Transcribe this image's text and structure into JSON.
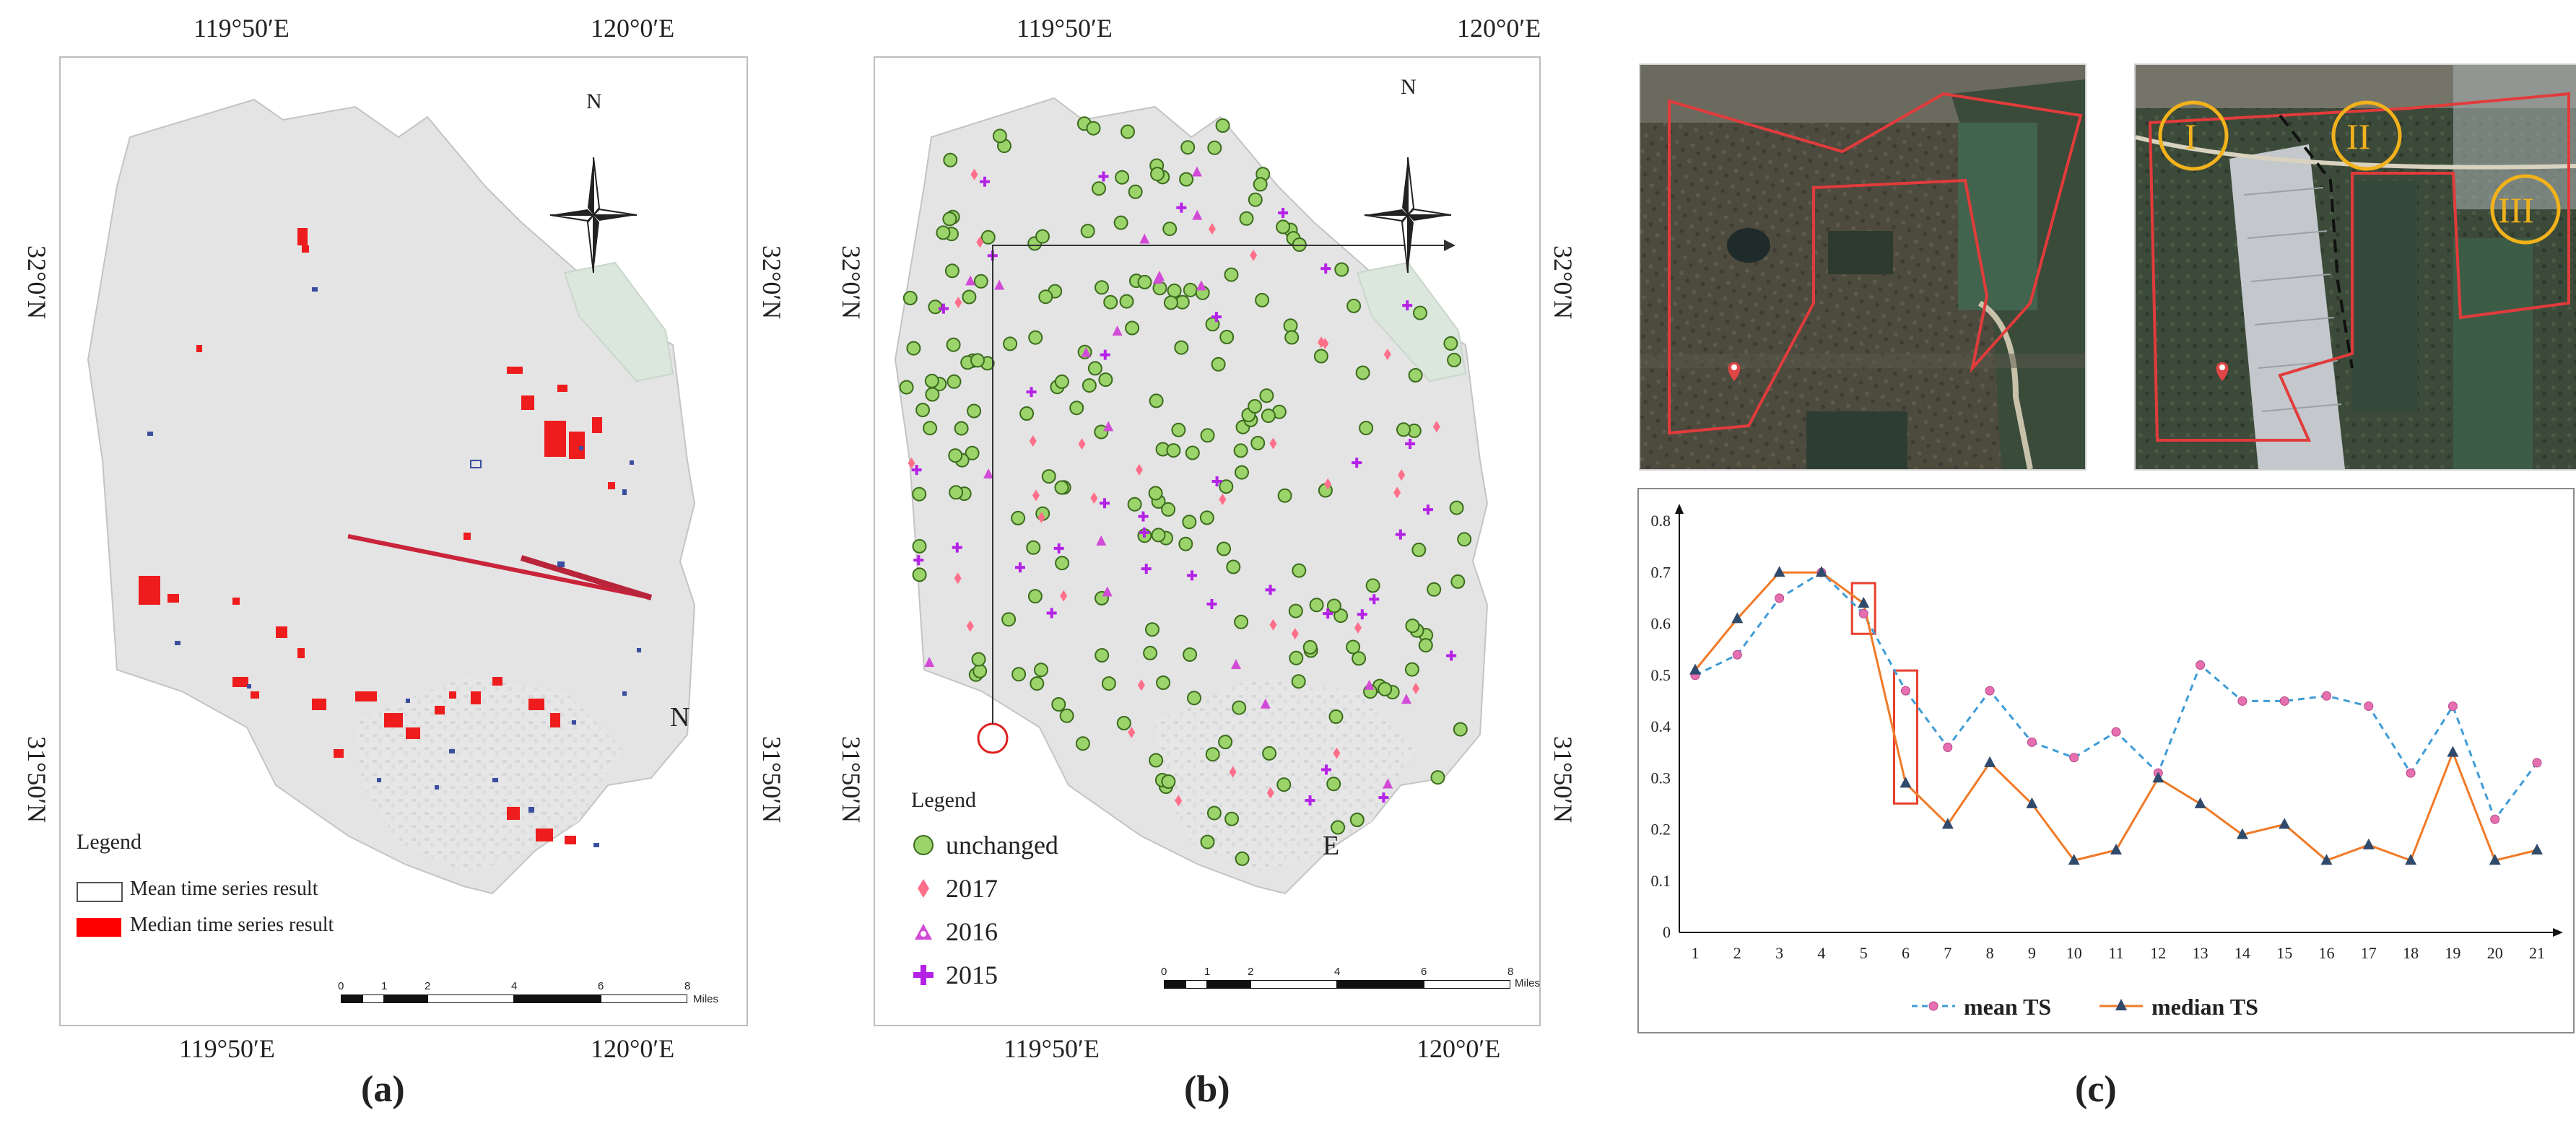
{
  "panels": {
    "a": {
      "caption": "(a)",
      "top_lon_labels": [
        "119°50′E",
        "120°0′E"
      ],
      "bottom_lon_labels": [
        "119°50′E",
        "120°0′E"
      ],
      "left_lat_labels": [
        "32°0′N",
        "31°50′N"
      ],
      "right_lat_labels": [
        "32°0′N",
        "31°50′N"
      ],
      "north_label": "N",
      "map_text": "N",
      "legend": {
        "title": "Legend",
        "items": [
          {
            "label": "Mean time series result",
            "swatch": "#ffffff"
          },
          {
            "label": "Median time series result",
            "swatch": "#ff0000"
          }
        ]
      },
      "scale": {
        "ticks": [
          "0",
          "1",
          "2",
          "4",
          "6",
          "8"
        ],
        "unit": "Miles"
      }
    },
    "b": {
      "caption": "(b)",
      "top_lon_labels": [
        "119°50′E",
        "120°0′E"
      ],
      "bottom_lon_labels": [
        "119°50′E",
        "120°0′E"
      ],
      "left_lat_labels": [
        "32°0′N",
        "31°50′N"
      ],
      "right_lat_labels": [
        "32°0′N",
        "31°50′N"
      ],
      "north_label": "N",
      "map_text": "E",
      "legend": {
        "title": "Legend",
        "items": [
          {
            "label": "unchanged",
            "symbol": "circle",
            "color": "#9bd46a"
          },
          {
            "label": "2017",
            "symbol": "diamond",
            "color": "#ff6f8a"
          },
          {
            "label": "2016",
            "symbol": "triangle",
            "color": "#d24bd6"
          },
          {
            "label": "2015",
            "symbol": "cross",
            "color": "#b422e6"
          }
        ]
      },
      "scale": {
        "ticks": [
          "0",
          "1",
          "2",
          "4",
          "6",
          "8"
        ],
        "unit": "Miles"
      }
    },
    "c": {
      "caption": "(c)",
      "inset_labels": [
        "I",
        "II",
        "III"
      ]
    }
  },
  "chart_data": {
    "type": "line",
    "x": [
      1,
      2,
      3,
      4,
      5,
      6,
      7,
      8,
      9,
      10,
      11,
      12,
      13,
      14,
      15,
      16,
      17,
      18,
      19,
      20,
      21
    ],
    "series": [
      {
        "name": "mean TS",
        "color": "#3e9cd6",
        "marker": "circle",
        "values": [
          0.5,
          0.54,
          0.65,
          0.7,
          0.62,
          0.47,
          0.36,
          0.47,
          0.37,
          0.34,
          0.39,
          0.31,
          0.52,
          0.45,
          0.45,
          0.46,
          0.44,
          0.31,
          0.44,
          0.22,
          0.33
        ]
      },
      {
        "name": "median TS",
        "color": "#f07a28",
        "marker": "triangle",
        "values": [
          0.51,
          0.61,
          0.7,
          0.7,
          0.64,
          0.29,
          0.21,
          0.33,
          0.25,
          0.14,
          0.16,
          0.3,
          0.25,
          0.19,
          0.21,
          0.14,
          0.17,
          0.14,
          0.35,
          0.14,
          0.16
        ]
      }
    ],
    "y_ticks": [
      "0",
      "0.1",
      "0.2",
      "0.3",
      "0.4",
      "0.5",
      "0.6",
      "0.7",
      "0.8"
    ],
    "ylim": [
      0,
      0.8
    ],
    "legend": {
      "position": "bottom"
    },
    "highlight_boxes": [
      {
        "x": 5
      },
      {
        "x": 6
      }
    ]
  }
}
